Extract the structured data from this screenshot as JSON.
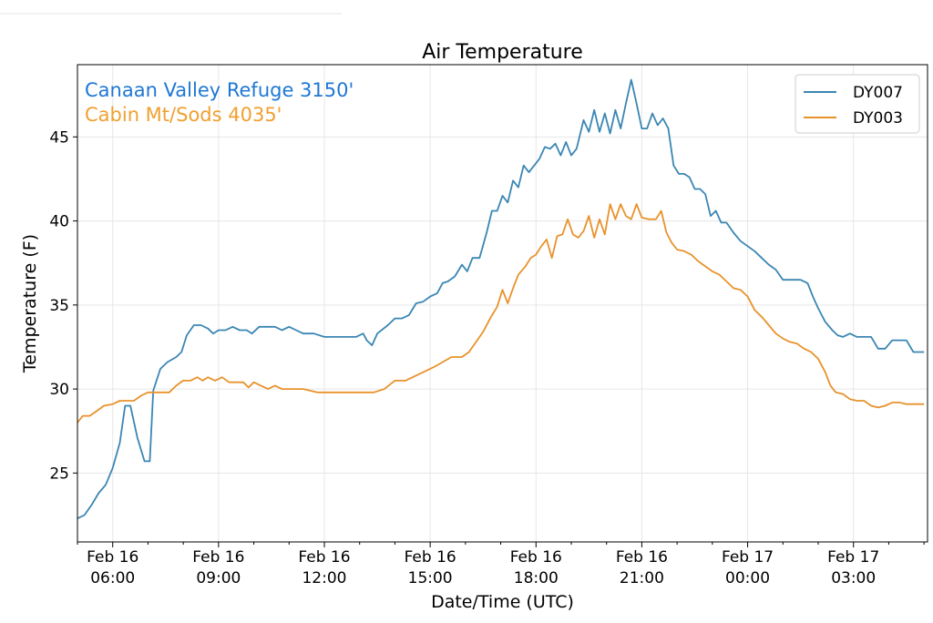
{
  "chart_data": {
    "type": "line",
    "title": "Air Temperature",
    "xlabel": "Date/Time (UTC)",
    "ylabel": "Temperature (F)",
    "xlim_hours": [
      5.0,
      29.1
    ],
    "ylim": [
      20.9,
      49.3
    ],
    "grid": true,
    "legend_position": "top-right",
    "y_ticks": [
      25,
      30,
      35,
      40,
      45
    ],
    "x_ticks": [
      {
        "hour": 6,
        "line1": "Feb 16",
        "line2": "06:00"
      },
      {
        "hour": 9,
        "line1": "Feb 16",
        "line2": "09:00"
      },
      {
        "hour": 12,
        "line1": "Feb 16",
        "line2": "12:00"
      },
      {
        "hour": 15,
        "line1": "Feb 16",
        "line2": "15:00"
      },
      {
        "hour": 18,
        "line1": "Feb 16",
        "line2": "18:00"
      },
      {
        "hour": 21,
        "line1": "Feb 16",
        "line2": "21:00"
      },
      {
        "hour": 24,
        "line1": "Feb 17",
        "line2": "00:00"
      },
      {
        "hour": 27,
        "line1": "Feb 17",
        "line2": "03:00"
      }
    ],
    "annotations": [
      {
        "text": "Canaan Valley Refuge 3150'",
        "color": "#1f77d4"
      },
      {
        "text": "Cabin Mt/Sods 4035'",
        "color": "#f0a030"
      }
    ],
    "series": [
      {
        "name": "DY007",
        "color": "#3a86b4",
        "points": [
          [
            5.0,
            22.3
          ],
          [
            5.2,
            22.5
          ],
          [
            5.4,
            23.1
          ],
          [
            5.6,
            23.8
          ],
          [
            5.8,
            24.3
          ],
          [
            6.0,
            25.3
          ],
          [
            6.2,
            26.8
          ],
          [
            6.35,
            29.0
          ],
          [
            6.5,
            29.0
          ],
          [
            6.7,
            27.1
          ],
          [
            6.9,
            25.7
          ],
          [
            7.05,
            25.7
          ],
          [
            7.15,
            29.9
          ],
          [
            7.35,
            31.2
          ],
          [
            7.55,
            31.6
          ],
          [
            7.8,
            31.9
          ],
          [
            7.95,
            32.2
          ],
          [
            8.1,
            33.2
          ],
          [
            8.3,
            33.8
          ],
          [
            8.5,
            33.8
          ],
          [
            8.7,
            33.6
          ],
          [
            8.85,
            33.3
          ],
          [
            9.0,
            33.5
          ],
          [
            9.2,
            33.5
          ],
          [
            9.4,
            33.7
          ],
          [
            9.6,
            33.5
          ],
          [
            9.8,
            33.5
          ],
          [
            9.95,
            33.3
          ],
          [
            10.15,
            33.7
          ],
          [
            10.4,
            33.7
          ],
          [
            10.6,
            33.7
          ],
          [
            10.8,
            33.5
          ],
          [
            11.0,
            33.7
          ],
          [
            11.2,
            33.5
          ],
          [
            11.4,
            33.3
          ],
          [
            11.7,
            33.3
          ],
          [
            12.0,
            33.1
          ],
          [
            12.3,
            33.1
          ],
          [
            12.6,
            33.1
          ],
          [
            12.9,
            33.1
          ],
          [
            13.1,
            33.3
          ],
          [
            13.2,
            32.9
          ],
          [
            13.35,
            32.6
          ],
          [
            13.5,
            33.3
          ],
          [
            13.8,
            33.8
          ],
          [
            14.0,
            34.2
          ],
          [
            14.2,
            34.2
          ],
          [
            14.4,
            34.4
          ],
          [
            14.6,
            35.1
          ],
          [
            14.8,
            35.2
          ],
          [
            15.0,
            35.5
          ],
          [
            15.2,
            35.7
          ],
          [
            15.35,
            36.3
          ],
          [
            15.5,
            36.4
          ],
          [
            15.7,
            36.7
          ],
          [
            15.9,
            37.4
          ],
          [
            16.05,
            37.0
          ],
          [
            16.2,
            37.8
          ],
          [
            16.4,
            37.8
          ],
          [
            16.6,
            39.3
          ],
          [
            16.75,
            40.6
          ],
          [
            16.9,
            40.6
          ],
          [
            17.05,
            41.5
          ],
          [
            17.2,
            41.1
          ],
          [
            17.35,
            42.4
          ],
          [
            17.5,
            42.0
          ],
          [
            17.65,
            43.3
          ],
          [
            17.8,
            42.9
          ],
          [
            17.95,
            43.3
          ],
          [
            18.1,
            43.7
          ],
          [
            18.25,
            44.4
          ],
          [
            18.4,
            44.3
          ],
          [
            18.55,
            44.6
          ],
          [
            18.7,
            43.9
          ],
          [
            18.85,
            44.7
          ],
          [
            19.0,
            43.9
          ],
          [
            19.15,
            44.3
          ],
          [
            19.35,
            46.0
          ],
          [
            19.5,
            45.3
          ],
          [
            19.65,
            46.6
          ],
          [
            19.8,
            45.3
          ],
          [
            19.95,
            46.4
          ],
          [
            20.1,
            45.2
          ],
          [
            20.25,
            46.6
          ],
          [
            20.4,
            45.5
          ],
          [
            20.55,
            47.0
          ],
          [
            20.7,
            48.4
          ],
          [
            20.85,
            47.0
          ],
          [
            21.0,
            45.5
          ],
          [
            21.15,
            45.5
          ],
          [
            21.3,
            46.4
          ],
          [
            21.45,
            45.7
          ],
          [
            21.6,
            46.1
          ],
          [
            21.75,
            45.5
          ],
          [
            21.9,
            43.3
          ],
          [
            22.05,
            42.8
          ],
          [
            22.2,
            42.8
          ],
          [
            22.35,
            42.6
          ],
          [
            22.5,
            41.9
          ],
          [
            22.65,
            41.9
          ],
          [
            22.8,
            41.6
          ],
          [
            22.95,
            40.3
          ],
          [
            23.1,
            40.6
          ],
          [
            23.25,
            39.9
          ],
          [
            23.4,
            39.9
          ],
          [
            23.6,
            39.3
          ],
          [
            23.8,
            38.8
          ],
          [
            24.0,
            38.5
          ],
          [
            24.2,
            38.2
          ],
          [
            24.4,
            37.8
          ],
          [
            24.6,
            37.4
          ],
          [
            24.8,
            37.1
          ],
          [
            25.0,
            36.5
          ],
          [
            25.2,
            36.5
          ],
          [
            25.5,
            36.5
          ],
          [
            25.7,
            36.3
          ],
          [
            25.85,
            35.5
          ],
          [
            26.0,
            34.8
          ],
          [
            26.2,
            34.0
          ],
          [
            26.4,
            33.5
          ],
          [
            26.55,
            33.2
          ],
          [
            26.7,
            33.1
          ],
          [
            26.9,
            33.3
          ],
          [
            27.1,
            33.1
          ],
          [
            27.3,
            33.1
          ],
          [
            27.5,
            33.1
          ],
          [
            27.7,
            32.4
          ],
          [
            27.9,
            32.4
          ],
          [
            28.1,
            32.9
          ],
          [
            28.3,
            32.9
          ],
          [
            28.5,
            32.9
          ],
          [
            28.7,
            32.2
          ],
          [
            29.0,
            32.2
          ]
        ]
      },
      {
        "name": "DY003",
        "color": "#e8922c",
        "points": [
          [
            5.0,
            28.0
          ],
          [
            5.15,
            28.4
          ],
          [
            5.35,
            28.4
          ],
          [
            5.55,
            28.7
          ],
          [
            5.75,
            29.0
          ],
          [
            6.0,
            29.1
          ],
          [
            6.2,
            29.3
          ],
          [
            6.4,
            29.3
          ],
          [
            6.6,
            29.3
          ],
          [
            6.8,
            29.6
          ],
          [
            7.0,
            29.8
          ],
          [
            7.2,
            29.8
          ],
          [
            7.4,
            29.8
          ],
          [
            7.6,
            29.8
          ],
          [
            7.8,
            30.2
          ],
          [
            8.0,
            30.5
          ],
          [
            8.2,
            30.5
          ],
          [
            8.4,
            30.7
          ],
          [
            8.55,
            30.5
          ],
          [
            8.7,
            30.7
          ],
          [
            8.9,
            30.5
          ],
          [
            9.1,
            30.7
          ],
          [
            9.3,
            30.4
          ],
          [
            9.5,
            30.4
          ],
          [
            9.7,
            30.4
          ],
          [
            9.85,
            30.1
          ],
          [
            10.0,
            30.4
          ],
          [
            10.2,
            30.2
          ],
          [
            10.4,
            30.0
          ],
          [
            10.6,
            30.2
          ],
          [
            10.8,
            30.0
          ],
          [
            11.0,
            30.0
          ],
          [
            11.4,
            30.0
          ],
          [
            11.8,
            29.8
          ],
          [
            12.2,
            29.8
          ],
          [
            12.6,
            29.8
          ],
          [
            13.0,
            29.8
          ],
          [
            13.4,
            29.8
          ],
          [
            13.7,
            30.0
          ],
          [
            14.0,
            30.5
          ],
          [
            14.3,
            30.5
          ],
          [
            14.6,
            30.8
          ],
          [
            14.9,
            31.1
          ],
          [
            15.1,
            31.3
          ],
          [
            15.35,
            31.6
          ],
          [
            15.6,
            31.9
          ],
          [
            15.9,
            31.9
          ],
          [
            16.1,
            32.2
          ],
          [
            16.3,
            32.8
          ],
          [
            16.5,
            33.4
          ],
          [
            16.7,
            34.2
          ],
          [
            16.9,
            34.9
          ],
          [
            17.05,
            35.9
          ],
          [
            17.2,
            35.1
          ],
          [
            17.35,
            36.0
          ],
          [
            17.5,
            36.8
          ],
          [
            17.7,
            37.3
          ],
          [
            17.85,
            37.8
          ],
          [
            18.0,
            38.0
          ],
          [
            18.15,
            38.5
          ],
          [
            18.3,
            38.9
          ],
          [
            18.45,
            37.8
          ],
          [
            18.6,
            39.1
          ],
          [
            18.75,
            39.2
          ],
          [
            18.9,
            40.1
          ],
          [
            19.05,
            39.2
          ],
          [
            19.2,
            39.0
          ],
          [
            19.35,
            39.4
          ],
          [
            19.5,
            40.3
          ],
          [
            19.65,
            39.0
          ],
          [
            19.8,
            40.1
          ],
          [
            19.95,
            39.2
          ],
          [
            20.1,
            41.0
          ],
          [
            20.25,
            40.1
          ],
          [
            20.4,
            41.0
          ],
          [
            20.55,
            40.3
          ],
          [
            20.7,
            40.1
          ],
          [
            20.85,
            41.0
          ],
          [
            21.0,
            40.2
          ],
          [
            21.2,
            40.1
          ],
          [
            21.4,
            40.1
          ],
          [
            21.55,
            40.6
          ],
          [
            21.7,
            39.3
          ],
          [
            21.85,
            38.7
          ],
          [
            22.0,
            38.3
          ],
          [
            22.2,
            38.2
          ],
          [
            22.4,
            38.0
          ],
          [
            22.6,
            37.6
          ],
          [
            22.8,
            37.3
          ],
          [
            23.0,
            37.0
          ],
          [
            23.2,
            36.8
          ],
          [
            23.4,
            36.4
          ],
          [
            23.6,
            36.0
          ],
          [
            23.8,
            35.9
          ],
          [
            24.0,
            35.5
          ],
          [
            24.2,
            34.7
          ],
          [
            24.4,
            34.3
          ],
          [
            24.6,
            33.8
          ],
          [
            24.8,
            33.3
          ],
          [
            25.0,
            33.0
          ],
          [
            25.2,
            32.8
          ],
          [
            25.4,
            32.7
          ],
          [
            25.6,
            32.4
          ],
          [
            25.8,
            32.2
          ],
          [
            26.0,
            31.8
          ],
          [
            26.2,
            31.0
          ],
          [
            26.35,
            30.2
          ],
          [
            26.5,
            29.8
          ],
          [
            26.7,
            29.7
          ],
          [
            26.9,
            29.4
          ],
          [
            27.1,
            29.3
          ],
          [
            27.3,
            29.3
          ],
          [
            27.5,
            29.0
          ],
          [
            27.7,
            28.9
          ],
          [
            27.9,
            29.0
          ],
          [
            28.1,
            29.2
          ],
          [
            28.3,
            29.2
          ],
          [
            28.5,
            29.1
          ],
          [
            28.7,
            29.1
          ],
          [
            29.0,
            29.1
          ]
        ]
      }
    ]
  }
}
